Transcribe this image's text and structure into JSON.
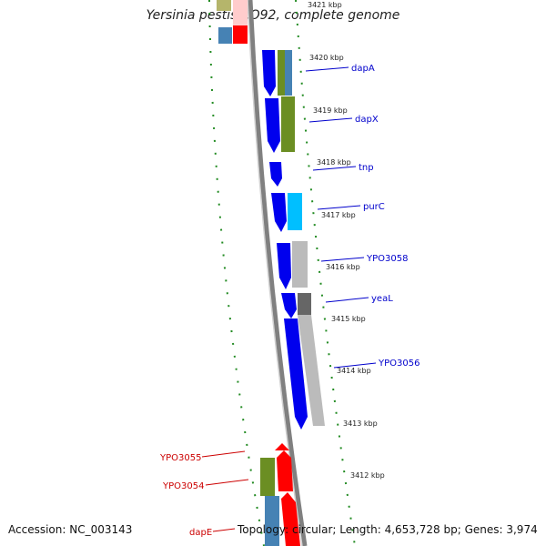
{
  "title": "Yersinia pestis CO92, complete genome",
  "footer": {
    "accession_label": "Accession:",
    "accession": "NC_003143",
    "topology_label": "Topology:",
    "topology": "circular",
    "length_label": "Length:",
    "length": "4,653,728 bp",
    "genes_label": "Genes:",
    "genes": "3,974"
  },
  "ruler": {
    "unit": "kbp",
    "ticks": [
      "3421 kbp",
      "3420 kbp",
      "3419 kbp",
      "3418 kbp",
      "3417 kbp",
      "3416 kbp",
      "3415 kbp",
      "3414 kbp",
      "3413 kbp",
      "3412 kbp"
    ]
  },
  "colors": {
    "forward_strand_genes": "#0000ee",
    "reverse_strand_genes": "#ff0000",
    "forward_label": "#0000cc",
    "reverse_label": "#cc0000",
    "cog_green": "#6b8e23",
    "cog_blue": "#4682b4",
    "cog_cyan": "#00bfff",
    "cog_gray": "#bbbbbb",
    "cog_dark_gray": "#666666",
    "ruler_green": "#228b22",
    "backbone": "#808080"
  },
  "forward_genes": [
    {
      "label": "dapA"
    },
    {
      "label": "dapX"
    },
    {
      "label": "tnp"
    },
    {
      "label": "purC"
    },
    {
      "label": "YPO3058"
    },
    {
      "label": "yeaL"
    },
    {
      "label": "YPO3056"
    }
  ],
  "reverse_genes": [
    {
      "label": "YPO3055"
    },
    {
      "label": "YPO3054"
    },
    {
      "label": "dapE"
    }
  ]
}
